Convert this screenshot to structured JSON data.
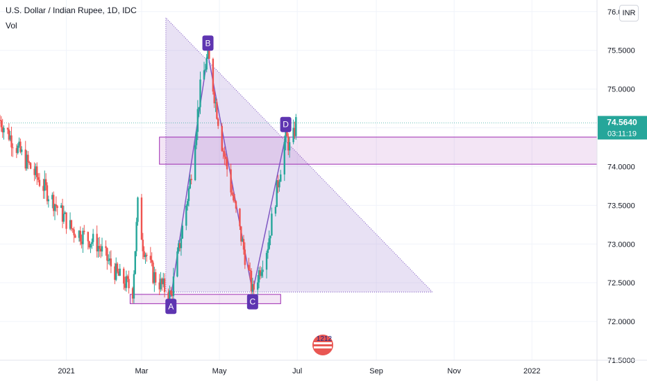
{
  "header": {
    "symbol_title": "U.S. Dollar / Indian Rupee, 1D, IDC",
    "volume_label": "Vol",
    "currency_button": "INR"
  },
  "price_badge": {
    "price": "74.5640",
    "countdown": "03:11:19",
    "color": "#26a69a"
  },
  "watermark": "1212",
  "colors": {
    "up": "#26a69a",
    "down": "#ef5350",
    "pattern_fill": "#b39ddb",
    "pattern_line": "#7e57c2",
    "label_bg": "#5e35b1",
    "zone": "#9c27b0"
  },
  "chart_data": {
    "type": "candlestick",
    "title": "U.S. Dollar / Indian Rupee, 1D, IDC",
    "x_axis": {
      "start": "2020-11-10",
      "end": "2022-02-21",
      "tick_labels": [
        "2021",
        "Mar",
        "May",
        "Jul",
        "Sep",
        "Nov",
        "2022"
      ],
      "tick_dates": [
        "2021-01-01",
        "2021-03-01",
        "2021-05-01",
        "2021-07-01",
        "2021-09-01",
        "2021-11-01",
        "2022-01-01"
      ]
    },
    "y_axis": {
      "min": 71.5,
      "max": 76.15,
      "tick_labels": [
        "71.5000",
        "72.0000",
        "72.5000",
        "73.0000",
        "73.5000",
        "74.0000",
        "74.5000",
        "75.0000",
        "75.5000",
        "76.0000"
      ],
      "tick_values": [
        71.5,
        72.0,
        72.5,
        73.0,
        73.5,
        74.0,
        74.5,
        75.0,
        75.5,
        76.0
      ]
    },
    "last_price": 74.564,
    "grid": true,
    "xabcd_pattern": {
      "points": [
        {
          "label": "A",
          "date": "2021-03-24",
          "price": 72.32
        },
        {
          "label": "B",
          "date": "2021-04-22",
          "price": 75.45
        },
        {
          "label": "C",
          "date": "2021-05-27",
          "price": 72.38
        },
        {
          "label": "D",
          "date": "2021-06-22",
          "price": 74.4
        }
      ],
      "triangle": [
        {
          "date": "2021-03-20",
          "price": 75.92
        },
        {
          "date": "2021-03-20",
          "price": 72.38
        },
        {
          "date": "2021-10-15",
          "price": 72.38
        }
      ],
      "triangle_points": [
        "apex",
        "base-left",
        "base-right"
      ]
    },
    "zones": [
      {
        "from": "2021-03-15",
        "to": "2022-02-21",
        "low": 74.03,
        "high": 74.38
      },
      {
        "from": "2021-02-20",
        "to": "2021-06-18",
        "low": 72.23,
        "high": 72.35
      }
    ]
  }
}
